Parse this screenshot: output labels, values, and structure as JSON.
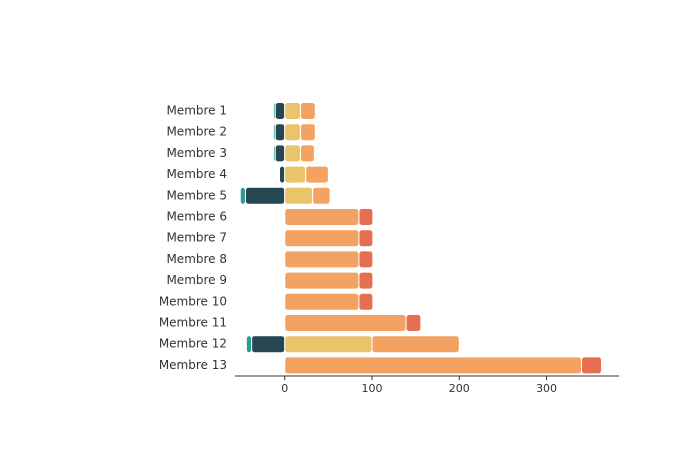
{
  "chart_data": {
    "type": "bar",
    "orientation": "horizontal",
    "stacked": true,
    "diverging": true,
    "title": "",
    "xlabel": "",
    "ylabel": "",
    "xlim": [
      -57,
      383
    ],
    "xticks": [
      0,
      100,
      200,
      300
    ],
    "grid": false,
    "legend": "none",
    "categories": [
      "Membre 1",
      "Membre 2",
      "Membre 3",
      "Membre 4",
      "Membre 5",
      "Membre 6",
      "Membre 7",
      "Membre 8",
      "Membre 9",
      "Membre 10",
      "Membre 11",
      "Membre 12",
      "Membre 13"
    ],
    "series": [
      {
        "color": "#264653",
        "values": [
          -11,
          -11,
          -11,
          -6,
          -45,
          0,
          0,
          0,
          0,
          0,
          0,
          -38,
          0
        ]
      },
      {
        "color": "#2a9d8f",
        "values": [
          -2,
          -2,
          -2,
          0,
          -6,
          0,
          0,
          0,
          0,
          0,
          0,
          -6,
          0
        ]
      },
      {
        "color": "#e9c46a",
        "values": [
          18,
          18,
          18,
          24,
          32,
          0,
          0,
          0,
          0,
          0,
          0,
          100,
          0
        ]
      },
      {
        "color": "#f4a261",
        "values": [
          17,
          17,
          16,
          26,
          20,
          85,
          85,
          85,
          85,
          85,
          139,
          100,
          340
        ]
      },
      {
        "color": "#e76f51",
        "values": [
          0,
          0,
          0,
          0,
          0,
          16,
          16,
          16,
          16,
          16,
          17,
          0,
          23
        ]
      }
    ]
  }
}
